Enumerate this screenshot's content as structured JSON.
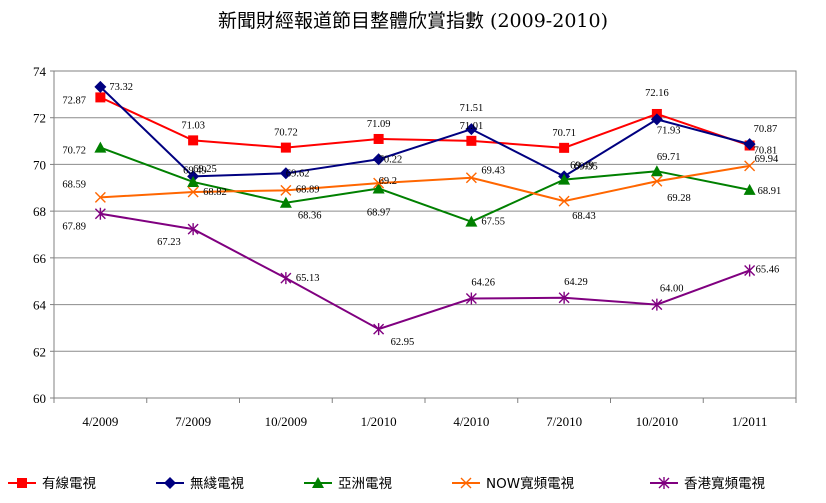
{
  "chart_data": {
    "type": "line",
    "title": "新聞財經報道節目整體欣賞指數 (2009-2010)",
    "xlabel": "",
    "ylabel": "",
    "categories": [
      "4/2009",
      "7/2009",
      "10/2009",
      "1/2010",
      "4/2010",
      "7/2010",
      "10/2010",
      "1/2011"
    ],
    "ylim": [
      60,
      74
    ],
    "yticks": [
      "60",
      "62",
      "64",
      "66",
      "68",
      "70",
      "72",
      "74"
    ],
    "grid": true,
    "legend_position": "bottom",
    "series": [
      {
        "name": "有線電視",
        "color": "#ff0000",
        "marker": "square",
        "values": [
          72.87,
          71.03,
          70.72,
          71.09,
          71.01,
          70.71,
          72.16,
          70.81
        ],
        "labels": [
          "72.87",
          "71.03",
          "70.72",
          "71.09",
          "71.01",
          "70.71",
          "72.16",
          "70.81"
        ]
      },
      {
        "name": "無綫電視",
        "color": "#000080",
        "marker": "diamond",
        "values": [
          73.32,
          69.49,
          69.62,
          70.22,
          71.51,
          69.49,
          71.93,
          70.87
        ],
        "labels": [
          "73.32",
          "69.49",
          "69.62",
          "70.22",
          "71.51",
          "69.49",
          "71.93",
          "70.87"
        ]
      },
      {
        "name": "亞洲電視",
        "color": "#008000",
        "marker": "triangle",
        "values": [
          70.72,
          69.25,
          68.36,
          68.97,
          67.55,
          69.35,
          69.71,
          68.91
        ],
        "labels": [
          "70.72",
          "69.25",
          "68.36",
          "68.97",
          "67.55",
          "69.35",
          "69.71",
          "68.91"
        ]
      },
      {
        "name": "NOW寬頻電視",
        "color": "#ff6600",
        "marker": "x",
        "values": [
          68.59,
          68.82,
          68.89,
          69.2,
          69.43,
          68.43,
          69.28,
          69.94
        ],
        "labels": [
          "68.59",
          "68.82",
          "68.89",
          "69.2",
          "69.43",
          "68.43",
          "69.28",
          "69.94"
        ]
      },
      {
        "name": "香港寬頻電視",
        "color": "#800080",
        "marker": "star",
        "values": [
          67.89,
          67.23,
          65.13,
          62.95,
          64.26,
          64.29,
          64.0,
          65.46
        ],
        "labels": [
          "67.89",
          "67.23",
          "65.13",
          "62.95",
          "64.26",
          "64.29",
          "64.00",
          "65.46"
        ]
      }
    ]
  }
}
